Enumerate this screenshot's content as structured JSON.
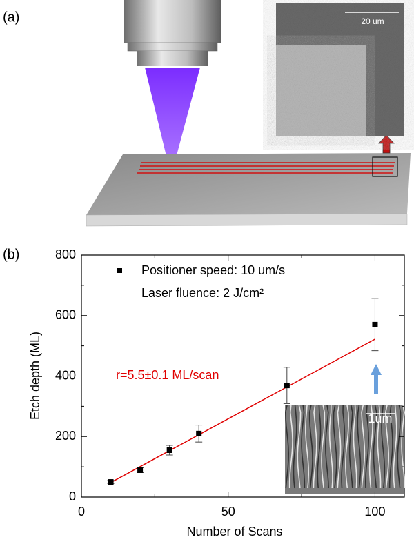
{
  "panel_a": {
    "label": "(a)",
    "scale_bar": "20 um"
  },
  "chart_data": {
    "type": "scatter",
    "panel_label": "(b)",
    "x_label": "Number of Scans",
    "y_label": "Etch depth (ML)",
    "xlim": [
      0,
      110
    ],
    "ylim": [
      0,
      800
    ],
    "xticks": [
      0,
      50,
      100
    ],
    "yticks": [
      0,
      200,
      400,
      600,
      800
    ],
    "xminorticks": [
      25,
      75
    ],
    "yminorticks": [
      100,
      300,
      500,
      700
    ],
    "series": [
      {
        "name": "Positioner speed: 10 um/s",
        "color": "#000000",
        "x": [
          10,
          20,
          30,
          40,
          70,
          100
        ],
        "values": [
          50,
          89,
          155,
          210,
          369,
          570
        ],
        "errors": [
          5,
          8,
          16,
          28,
          60,
          86
        ]
      }
    ],
    "legend_note": "Laser fluence: 2 J/cm²",
    "fit": {
      "x": [
        10,
        100
      ],
      "values": [
        48,
        522
      ],
      "color": "#e00000"
    },
    "annotation": "r=5.5±0.1 ML/scan",
    "inset_scale_bar": "1um"
  }
}
